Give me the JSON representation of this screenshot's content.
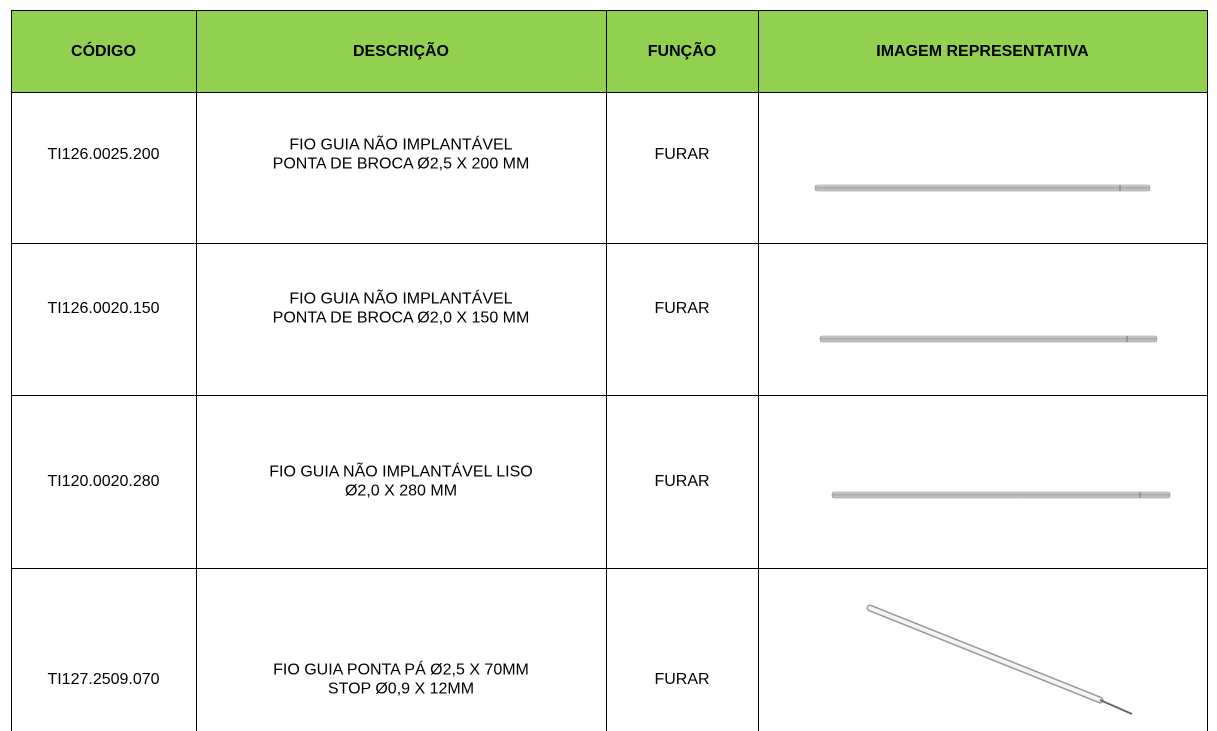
{
  "table": {
    "headers": [
      "CÓDIGO",
      "DESCRIÇÃO",
      "FUNÇÃO",
      "IMAGEM REPRESENTATIVA"
    ],
    "rows": [
      {
        "code": "TI126.0025.200",
        "description": [
          "FIO GUIA NÃO IMPLANTÁVEL",
          "PONTA DE BROCA Ø2,5 X 200 MM"
        ],
        "function": "FURAR"
      },
      {
        "code": "TI126.0020.150",
        "description": [
          "FIO GUIA NÃO IMPLANTÁVEL",
          "PONTA DE BROCA Ø2,0 X 150 MM"
        ],
        "function": "FURAR"
      },
      {
        "code": "TI120.0020.280",
        "description": [
          "FIO GUIA NÃO IMPLANTÁVEL LISO",
          "Ø2,0 X 280 MM"
        ],
        "function": "FURAR"
      },
      {
        "code": "TI127.2509.070",
        "description": [
          "FIO GUIA PONTA PÁ Ø2,5 X 70MM",
          "STOP Ø0,9 X 12MM"
        ],
        "function": "FURAR"
      }
    ]
  }
}
